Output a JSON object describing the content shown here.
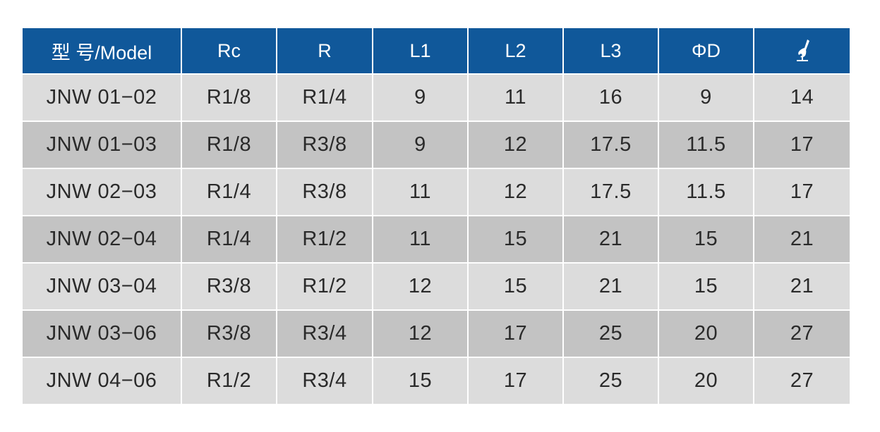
{
  "colors": {
    "header_bg": "#10589a",
    "row_light": "#dcdcdc",
    "row_dark": "#c3c3c3"
  },
  "table": {
    "headers": [
      "型 号/Model",
      "Rc",
      "R",
      "L1",
      "L2",
      "L3",
      "ΦD",
      ""
    ],
    "last_header_icon": "wrench-icon",
    "rows": [
      [
        "JNW 01−02",
        "R1/8",
        "R1/4",
        "9",
        "11",
        "16",
        "9",
        "14"
      ],
      [
        "JNW 01−03",
        "R1/8",
        "R3/8",
        "9",
        "12",
        "17.5",
        "11.5",
        "17"
      ],
      [
        "JNW 02−03",
        "R1/4",
        "R3/8",
        "11",
        "12",
        "17.5",
        "11.5",
        "17"
      ],
      [
        "JNW 02−04",
        "R1/4",
        "R1/2",
        "11",
        "15",
        "21",
        "15",
        "21"
      ],
      [
        "JNW 03−04",
        "R3/8",
        "R1/2",
        "12",
        "15",
        "21",
        "15",
        "21"
      ],
      [
        "JNW 03−06",
        "R3/8",
        "R3/4",
        "12",
        "17",
        "25",
        "20",
        "27"
      ],
      [
        "JNW 04−06",
        "R1/2",
        "R3/4",
        "15",
        "17",
        "25",
        "20",
        "27"
      ]
    ]
  }
}
